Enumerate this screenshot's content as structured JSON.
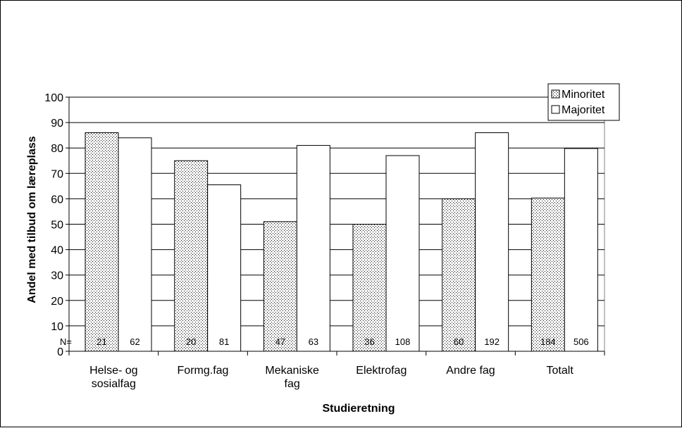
{
  "chart_data": {
    "type": "bar",
    "title": "",
    "xlabel": "Studieretning",
    "ylabel": "Andel med tilbud  om læreplass",
    "ylim": [
      0,
      100
    ],
    "yticks": [
      0,
      10,
      20,
      30,
      40,
      50,
      60,
      70,
      80,
      90,
      100
    ],
    "grid": true,
    "legend_position": "top-right",
    "categories": [
      [
        "Helse- og",
        "sosialfag"
      ],
      [
        "Formg.fag"
      ],
      [
        "Mekaniske",
        "fag"
      ],
      [
        "Elektrofag"
      ],
      [
        "Andre fag"
      ],
      [
        "Totalt"
      ]
    ],
    "series": [
      {
        "name": "Minoritet",
        "values": [
          86,
          75,
          51,
          50,
          60,
          60.3
        ],
        "n": [
          "21",
          "20",
          "47",
          "36",
          "60",
          "184"
        ],
        "pattern": "dots"
      },
      {
        "name": "Majoritet",
        "values": [
          84,
          65.5,
          81,
          77,
          86,
          79.8
        ],
        "n": [
          "62",
          "81",
          "63",
          "108",
          "192",
          "506"
        ],
        "pattern": "white"
      }
    ],
    "n_prefix": "N="
  }
}
